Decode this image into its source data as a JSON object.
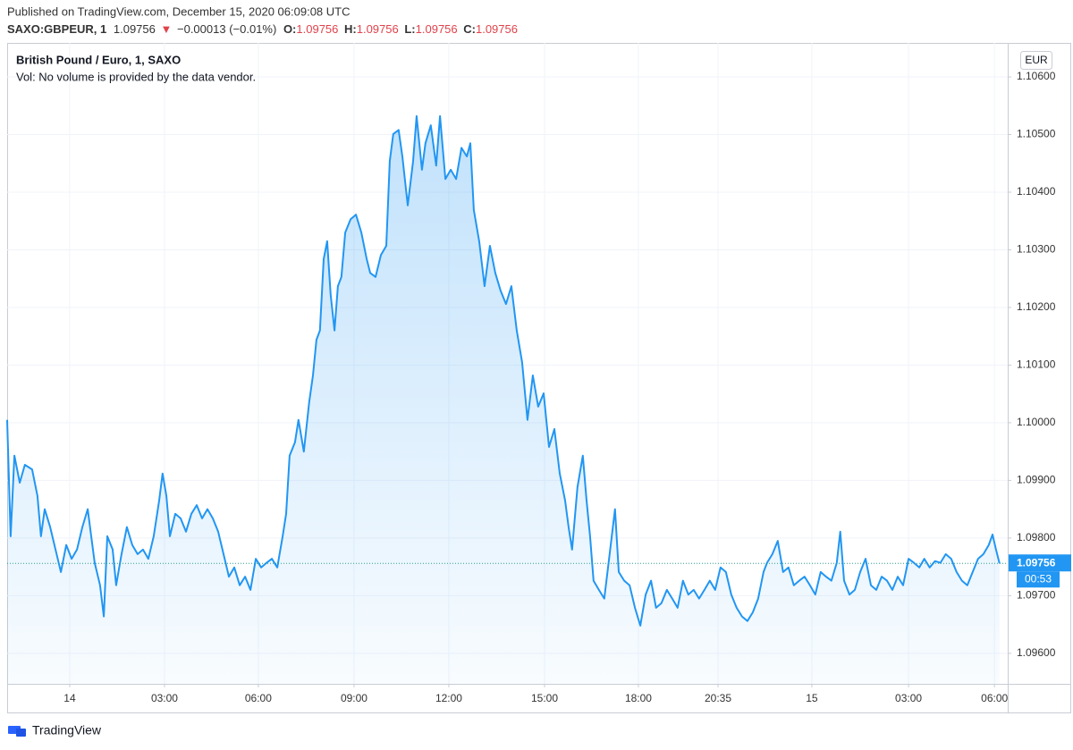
{
  "header": {
    "published": "Published on TradingView.com, December 15, 2020 06:09:08 UTC",
    "symbol": "SAXO:GBPEUR, 1",
    "last": "1.09756",
    "arrow": "▼",
    "change": "−0.00013 (−0.01%)",
    "ohlc": [
      {
        "label": "O:",
        "value": "1.09756"
      },
      {
        "label": "H:",
        "value": "1.09756"
      },
      {
        "label": "L:",
        "value": "1.09756"
      },
      {
        "label": "C:",
        "value": "1.09756"
      }
    ]
  },
  "chart_data": {
    "type": "area",
    "title": "British Pound / Euro, 1, SAXO",
    "subtitle": "Vol: No volume is provided by the data vendor.",
    "currency": "EUR",
    "color": "#2196f3",
    "x": [
      -1.98,
      -1.87,
      -1.75,
      -1.58,
      -1.42,
      -1.19,
      -1.02,
      -0.91,
      -0.79,
      -0.62,
      -0.45,
      -0.28,
      -0.11,
      0.06,
      0.23,
      0.4,
      0.57,
      0.68,
      0.79,
      0.96,
      1.08,
      1.19,
      1.36,
      1.47,
      1.64,
      1.81,
      1.98,
      2.15,
      2.32,
      2.49,
      2.66,
      2.83,
      2.94,
      3.06,
      3.17,
      3.34,
      3.51,
      3.68,
      3.85,
      4.02,
      4.19,
      4.36,
      4.53,
      4.7,
      4.87,
      5.04,
      5.21,
      5.38,
      5.55,
      5.72,
      5.89,
      6.06,
      6.23,
      6.4,
      6.57,
      6.74,
      6.85,
      6.96,
      7.13,
      7.24,
      7.41,
      7.58,
      7.7,
      7.81,
      7.92,
      8.04,
      8.15,
      8.26,
      8.38,
      8.49,
      8.6,
      8.72,
      8.89,
      9.06,
      9.23,
      9.4,
      9.51,
      9.68,
      9.85,
      10.02,
      10.13,
      10.24,
      10.41,
      10.53,
      10.7,
      10.87,
      10.98,
      11.15,
      11.26,
      11.43,
      11.6,
      11.72,
      11.89,
      12.06,
      12.23,
      12.4,
      12.57,
      12.68,
      12.79,
      12.96,
      13.13,
      13.3,
      13.47,
      13.64,
      13.81,
      13.98,
      14.15,
      14.32,
      14.49,
      14.66,
      14.83,
      15.0,
      15.17,
      15.34,
      15.51,
      15.68,
      15.79,
      15.9,
      16.07,
      16.24,
      16.36,
      16.47,
      16.58,
      16.75,
      16.92,
      17.09,
      17.26,
      17.38,
      17.55,
      17.72,
      17.89,
      18.06,
      18.23,
      18.4,
      18.56,
      18.73,
      18.9,
      19.07,
      19.24,
      19.41,
      19.58,
      19.75,
      19.92,
      20.09,
      20.26,
      20.43,
      20.6,
      20.77,
      20.94,
      21.11,
      21.28,
      21.45,
      21.62,
      21.79,
      21.96,
      22.07,
      22.24,
      22.41,
      22.58,
      22.75,
      22.92,
      23.09,
      23.26,
      23.43,
      23.6,
      23.77,
      23.94,
      24.11,
      24.28,
      24.39,
      24.51,
      24.68,
      24.85,
      25.02,
      25.19,
      25.36,
      25.53,
      25.7,
      25.87,
      26.04,
      26.21,
      26.38,
      26.55,
      26.72,
      26.89,
      27.05,
      27.22,
      27.39,
      27.56,
      27.73,
      27.9,
      28.07,
      28.24,
      28.41,
      28.58,
      28.75,
      28.92,
      29.09,
      29.21,
      29.32,
      29.43
    ],
    "values": [
      1.10005,
      1.09803,
      1.09943,
      1.09896,
      1.09927,
      1.09919,
      1.09873,
      1.09803,
      1.0985,
      1.09819,
      1.0978,
      1.09741,
      1.09788,
      1.09764,
      1.0978,
      1.09819,
      1.0985,
      1.09803,
      1.09757,
      1.09718,
      1.09664,
      1.09803,
      1.0978,
      1.09718,
      1.09772,
      1.09819,
      1.09788,
      1.09772,
      1.0978,
      1.09764,
      1.09803,
      1.09865,
      1.09912,
      1.09873,
      1.09803,
      1.09842,
      1.09834,
      1.09811,
      1.09842,
      1.09857,
      1.09834,
      1.0985,
      1.09834,
      1.09811,
      1.09772,
      1.09733,
      1.09749,
      1.09718,
      1.09733,
      1.0971,
      1.09764,
      1.09749,
      1.09757,
      1.09764,
      1.09749,
      1.09803,
      1.09842,
      1.09943,
      1.09966,
      1.10005,
      1.0995,
      1.10036,
      1.10082,
      1.10144,
      1.1016,
      1.10284,
      1.10315,
      1.10222,
      1.1016,
      1.10237,
      1.10253,
      1.1033,
      1.10353,
      1.10361,
      1.1033,
      1.10284,
      1.1026,
      1.10253,
      1.10291,
      1.10307,
      1.10454,
      1.10501,
      1.10508,
      1.10462,
      1.10377,
      1.10454,
      1.10532,
      1.10439,
      1.10485,
      1.10516,
      1.10446,
      1.10532,
      1.10423,
      1.10439,
      1.10423,
      1.10477,
      1.10462,
      1.10485,
      1.10369,
      1.10315,
      1.10237,
      1.10307,
      1.1026,
      1.10229,
      1.10206,
      1.10237,
      1.1016,
      1.10105,
      1.10005,
      1.10082,
      1.10028,
      1.10051,
      1.09958,
      1.09989,
      1.09912,
      1.09865,
      1.09819,
      1.0978,
      1.09888,
      1.09943,
      1.09865,
      1.09803,
      1.09726,
      1.0971,
      1.09695,
      1.09772,
      1.0985,
      1.09741,
      1.09726,
      1.09718,
      1.09679,
      1.09648,
      1.09702,
      1.09726,
      1.09679,
      1.09687,
      1.0971,
      1.09695,
      1.09679,
      1.09726,
      1.09702,
      1.0971,
      1.09695,
      1.0971,
      1.09726,
      1.0971,
      1.09749,
      1.09741,
      1.09702,
      1.09679,
      1.09664,
      1.09656,
      1.09671,
      1.09695,
      1.09741,
      1.09757,
      1.09772,
      1.09795,
      1.09741,
      1.09749,
      1.09718,
      1.09726,
      1.09733,
      1.09718,
      1.09702,
      1.09741,
      1.09733,
      1.09726,
      1.09757,
      1.09811,
      1.09726,
      1.09702,
      1.0971,
      1.09741,
      1.09764,
      1.09718,
      1.0971,
      1.09733,
      1.09726,
      1.0971,
      1.09733,
      1.09718,
      1.09764,
      1.09757,
      1.09749,
      1.09764,
      1.09749,
      1.0976,
      1.09757,
      1.09772,
      1.09764,
      1.09741,
      1.09726,
      1.09718,
      1.09741,
      1.09764,
      1.09772,
      1.09788,
      1.09806,
      1.0978,
      1.09756
    ],
    "last_price": {
      "value": 1.09756,
      "label": "1.09756"
    },
    "countdown": "00:53",
    "xlim": [
      -1.98,
      29.69
    ],
    "ylim": [
      1.09547,
      1.10659
    ],
    "xticks": [
      {
        "value": 0,
        "label": "14"
      },
      {
        "value": 3,
        "label": "03:00"
      },
      {
        "value": 5.97,
        "label": "06:00"
      },
      {
        "value": 9,
        "label": "09:00"
      },
      {
        "value": 12,
        "label": "12:00"
      },
      {
        "value": 15.03,
        "label": "15:00"
      },
      {
        "value": 18,
        "label": "18:00"
      },
      {
        "value": 20.52,
        "label": "20:35"
      },
      {
        "value": 23.49,
        "label": "15"
      },
      {
        "value": 26.55,
        "label": "03:00"
      },
      {
        "value": 29.27,
        "label": "06:00"
      }
    ],
    "yticks": [
      {
        "value": 1.096,
        "label": "1.09600"
      },
      {
        "value": 1.097,
        "label": "1.09700"
      },
      {
        "value": 1.098,
        "label": "1.09800"
      },
      {
        "value": 1.099,
        "label": "1.09900"
      },
      {
        "value": 1.1,
        "label": "1.10000"
      },
      {
        "value": 1.101,
        "label": "1.10100"
      },
      {
        "value": 1.102,
        "label": "1.10200"
      },
      {
        "value": 1.103,
        "label": "1.10300"
      },
      {
        "value": 1.104,
        "label": "1.10400"
      },
      {
        "value": 1.105,
        "label": "1.10500"
      },
      {
        "value": 1.106,
        "label": "1.10600"
      }
    ],
    "grid": true
  },
  "footer": {
    "brand": "TradingView"
  }
}
